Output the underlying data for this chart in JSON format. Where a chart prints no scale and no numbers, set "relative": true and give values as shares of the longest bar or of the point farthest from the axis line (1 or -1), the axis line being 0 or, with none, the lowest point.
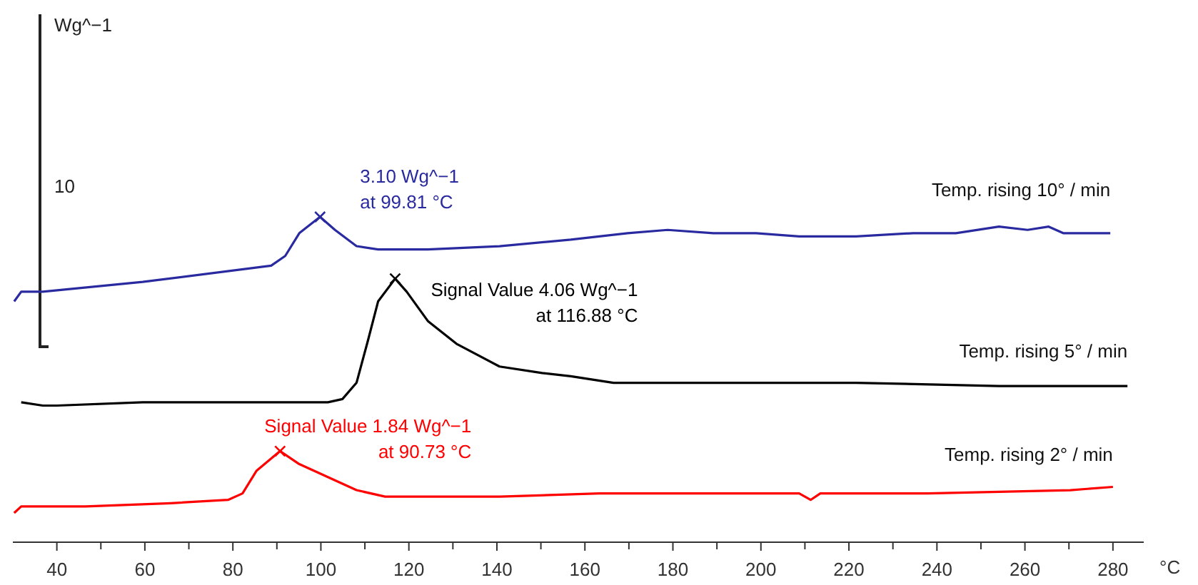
{
  "chart_data": {
    "type": "line",
    "relative": true,
    "xlabel": "°C",
    "xlim": [
      30,
      287
    ],
    "xticks": [
      40,
      {
        "value": 50,
        "label": null
      },
      60,
      {
        "value": 70,
        "label": null
      },
      80,
      {
        "value": 90,
        "label": null
      },
      100,
      {
        "value": 110,
        "label": null
      },
      120,
      {
        "value": 130,
        "label": null
      },
      140,
      {
        "value": 150,
        "label": null
      },
      160,
      {
        "value": 170,
        "label": null
      },
      180,
      {
        "value": 190,
        "label": null
      },
      200,
      {
        "value": 210,
        "label": null
      },
      220,
      {
        "value": 230,
        "label": null
      },
      240,
      {
        "value": 250,
        "label": null
      },
      260,
      {
        "value": 270,
        "label": null
      },
      280
    ],
    "tick_labels": "x",
    "grid": false,
    "legend": false,
    "marker": "none",
    "line_style": "solid",
    "series": [
      {
        "name": "Temp. rising 10° / min",
        "color": "#2a2aa0",
        "x": [
          30.3,
          31.9,
          36.8,
          59.5,
          88.7,
          91.9,
          95.1,
          99.81,
          103.2,
          108.1,
          113,
          124.3,
          140.6,
          156.8,
          169.7,
          178.8,
          189.2,
          198.9,
          208.7,
          221.6,
          234.6,
          244.3,
          254.1,
          260.6,
          265.4,
          268.7,
          273.5,
          279.4
        ],
        "values": [
          0.74,
          0.77,
          0.77,
          0.8,
          0.85,
          0.88,
          0.95,
          1,
          0.96,
          0.91,
          0.9,
          0.9,
          0.91,
          0.93,
          0.95,
          0.96,
          0.95,
          0.95,
          0.94,
          0.94,
          0.95,
          0.95,
          0.97,
          0.96,
          0.97,
          0.95,
          0.95,
          0.95
        ]
      },
      {
        "name": "Temp. rising 5° / min",
        "color": "#000000",
        "x": [
          31.9,
          36.8,
          40,
          59.5,
          78.9,
          101.6,
          104.9,
          108.1,
          110.7,
          113,
          116.88,
          119.5,
          124.3,
          130.8,
          140.6,
          150.3,
          156.8,
          166.5,
          176.2,
          189.2,
          221.6,
          254.1,
          283.3
        ],
        "values": [
          0.43,
          0.42,
          0.42,
          0.43,
          0.43,
          0.43,
          0.44,
          0.49,
          0.62,
          0.74,
          0.81,
          0.77,
          0.68,
          0.61,
          0.54,
          0.52,
          0.51,
          0.49,
          0.49,
          0.49,
          0.49,
          0.48,
          0.48
        ]
      },
      {
        "name": "Temp. rising 2° / min",
        "color": "#ff0000",
        "x": [
          30.3,
          31.9,
          46.5,
          65.9,
          78.9,
          82.2,
          85.4,
          90.73,
          95.1,
          101.6,
          108.1,
          114.6,
          140.6,
          163.3,
          189.2,
          208.7,
          211.3,
          213.5,
          237.9,
          270.3,
          280
        ],
        "values": [
          0.09,
          0.11,
          0.11,
          0.12,
          0.13,
          0.15,
          0.22,
          0.28,
          0.24,
          0.2,
          0.16,
          0.14,
          0.14,
          0.15,
          0.15,
          0.15,
          0.13,
          0.15,
          0.15,
          0.16,
          0.17
        ]
      }
    ],
    "annotations": [
      {
        "text": "3.10 Wg^−1\nat 99.81 °C",
        "x": 99.81,
        "y": 1
      },
      {
        "text": "Signal Value 4.06 Wg^−1\nat 116.88 °C",
        "x": 116.88,
        "y": 0.81
      },
      {
        "text": "Signal Value 1.84 Wg^−1\nat 90.73 °C",
        "x": 90.73,
        "y": 0.28
      },
      "Wg^−1",
      "10"
    ]
  }
}
